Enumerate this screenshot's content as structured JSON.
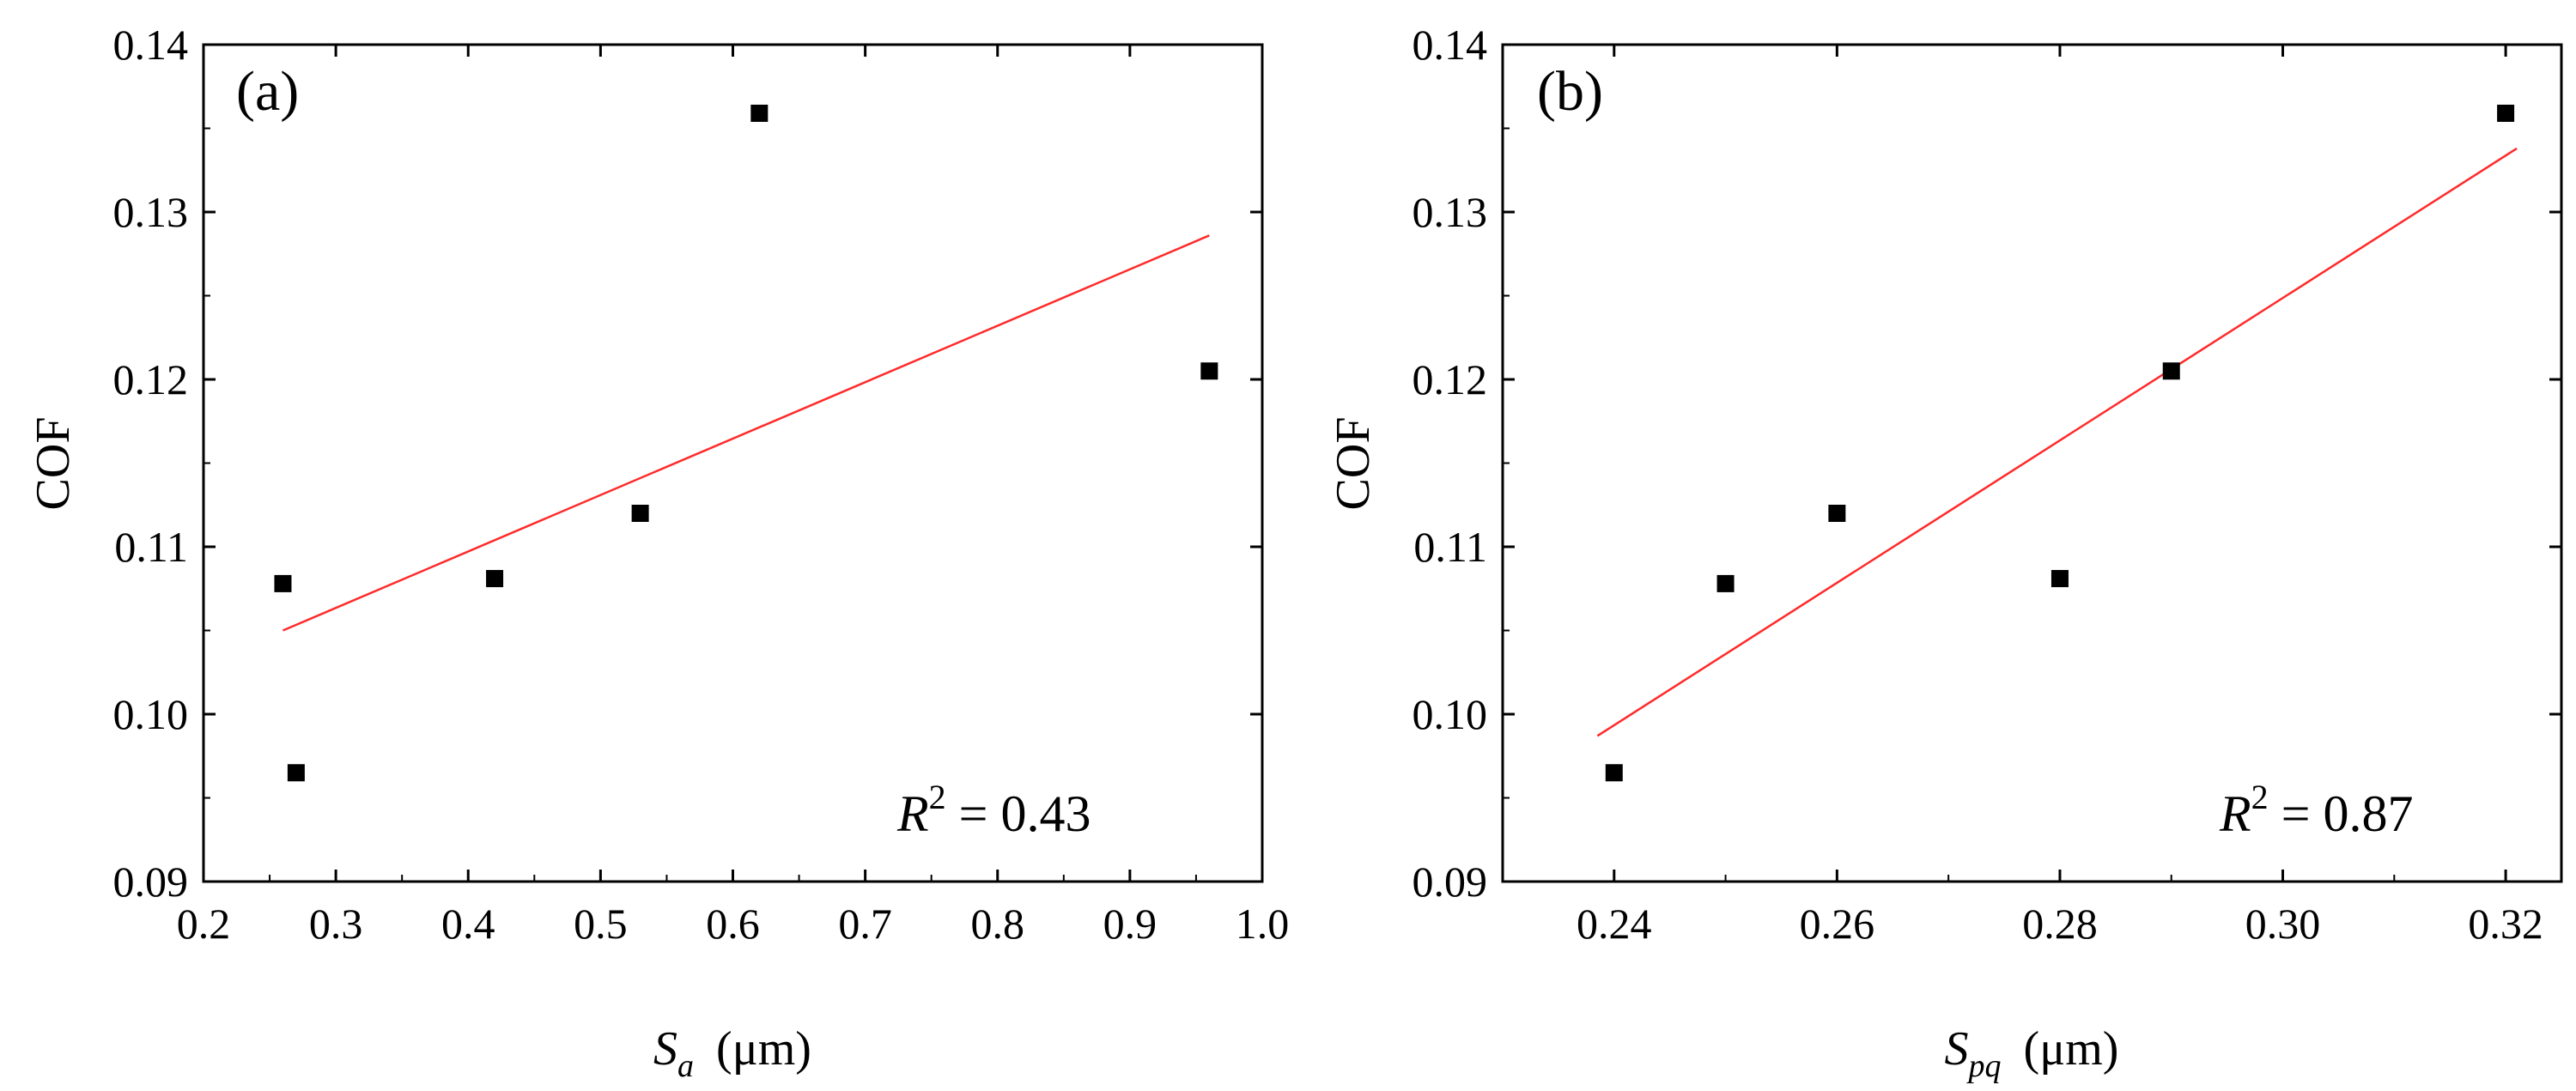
{
  "chart_data": [
    {
      "panel": "(a)",
      "type": "scatter",
      "xlabel": {
        "symbol": "S",
        "subscript": "a",
        "unit": "(μm)"
      },
      "ylabel": "COF",
      "xlim": [
        0.2,
        1.0
      ],
      "ylim": [
        0.09,
        0.14
      ],
      "xticks": [
        "0.2",
        "0.3",
        "0.4",
        "0.5",
        "0.6",
        "0.7",
        "0.8",
        "0.9",
        "1.0"
      ],
      "yticks": [
        "0.09",
        "0.10",
        "0.11",
        "0.12",
        "0.13",
        "0.14"
      ],
      "points": [
        {
          "x": 0.26,
          "y": 0.1078
        },
        {
          "x": 0.27,
          "y": 0.0965
        },
        {
          "x": 0.42,
          "y": 0.1081
        },
        {
          "x": 0.53,
          "y": 0.112
        },
        {
          "x": 0.62,
          "y": 0.1359
        },
        {
          "x": 0.96,
          "y": 0.1205
        }
      ],
      "fit": {
        "x": [
          0.26,
          0.96
        ],
        "y": [
          0.105,
          0.1286
        ],
        "color": "#ff2a2a"
      },
      "r2": {
        "label": "R",
        "sup": "2",
        "text": " = 0.43"
      }
    },
    {
      "panel": "(b)",
      "type": "scatter",
      "xlabel": {
        "symbol": "S",
        "subscript": "pq",
        "unit": "(μm)"
      },
      "ylabel": "COF",
      "xlim": [
        0.23,
        0.325
      ],
      "ylim": [
        0.09,
        0.14
      ],
      "xticks": [
        "0.24",
        "0.26",
        "0.28",
        "0.30",
        "0.32"
      ],
      "xtick_values": [
        0.24,
        0.26,
        0.28,
        0.3,
        0.32
      ],
      "yticks": [
        "0.09",
        "0.10",
        "0.11",
        "0.12",
        "0.13",
        "0.14"
      ],
      "points": [
        {
          "x": 0.24,
          "y": 0.0965
        },
        {
          "x": 0.25,
          "y": 0.1078
        },
        {
          "x": 0.26,
          "y": 0.112
        },
        {
          "x": 0.28,
          "y": 0.1081
        },
        {
          "x": 0.29,
          "y": 0.1205
        },
        {
          "x": 0.32,
          "y": 0.1359
        }
      ],
      "fit": {
        "x": [
          0.2385,
          0.321
        ],
        "y": [
          0.0987,
          0.1338
        ],
        "color": "#ff2a2a"
      },
      "r2": {
        "label": "R",
        "sup": "2",
        "text": " = 0.87"
      }
    }
  ]
}
